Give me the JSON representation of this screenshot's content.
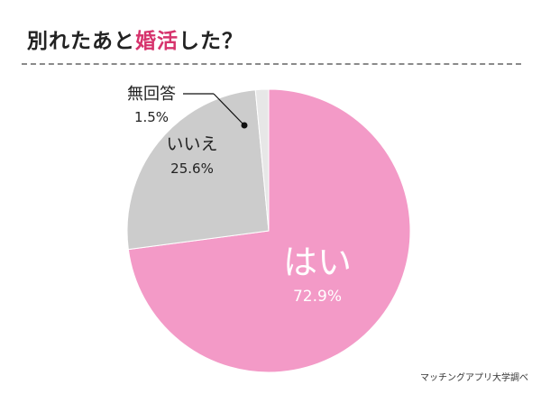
{
  "title": {
    "prefix": "別れたあと",
    "accent": "婚活",
    "suffix": "した？"
  },
  "source": "マッチングアプリ大学調べ",
  "colors": {
    "accent": "#d6336c",
    "slice_yes": "#f39ac7",
    "slice_no": "#cccccc",
    "slice_noanswer": "#e7e7e7"
  },
  "chart_data": {
    "type": "pie",
    "title": "別れたあと婚活した？",
    "slices": [
      {
        "label": "はい",
        "value": 72.9,
        "value_label": "72.9%",
        "color": "#f39ac7"
      },
      {
        "label": "いいえ",
        "value": 25.6,
        "value_label": "25.6%",
        "color": "#cccccc"
      },
      {
        "label": "無回答",
        "value": 1.5,
        "value_label": "1.5%",
        "color": "#e7e7e7"
      }
    ],
    "start": "12 o'clock",
    "direction": "clockwise",
    "legend": "none",
    "grid": false
  }
}
